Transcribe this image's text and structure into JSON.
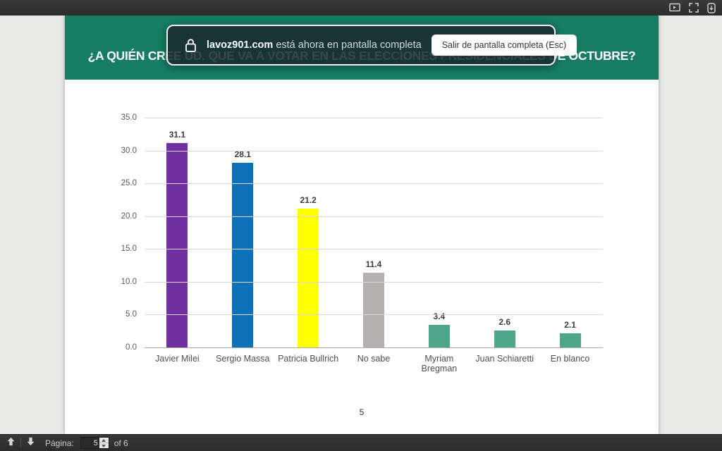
{
  "titlebar": {
    "icons": [
      {
        "name": "presentation-mode-icon"
      },
      {
        "name": "fullscreen-exit-icon"
      },
      {
        "name": "scroll-mode-icon"
      }
    ]
  },
  "fullscreen_notice": {
    "lock_icon": "lock-icon",
    "domain": "lavoz901.com",
    "message": " está ahora en pantalla completa",
    "exit_button_label": "Salir de pantalla completa (Esc)",
    "background_color": "rgba(26,40,44,0.86)"
  },
  "slide": {
    "title": "¿A QUIÉN CREE UD. QUE VA A VOTAR EN LAS ELECCIONES PRESIDENCIALES DE OCTUBRE?",
    "header_color": "#167d63",
    "page_number": "5"
  },
  "chart_data": {
    "type": "bar",
    "title": "¿A QUIÉN CREE UD. QUE VA A VOTAR EN LAS ELECCIONES PRESIDENCIALES DE OCTUBRE?",
    "categories": [
      "Javier Milei",
      "Sergio Massa",
      "Patricia Bullrich",
      "No sabe",
      "Myriam Bregman",
      "Juan Schiaretti",
      "En blanco"
    ],
    "values": [
      31.1,
      28.1,
      21.2,
      11.4,
      3.4,
      2.6,
      2.1
    ],
    "bar_colors": [
      "#7030a0",
      "#0f72b8",
      "#ffff00",
      "#b3b0af",
      "#4da58a",
      "#4da58a",
      "#4da58a"
    ],
    "xlabel": "",
    "ylabel": "",
    "ylim": [
      0,
      35
    ],
    "ytick_labels": [
      "35.0",
      "30.0",
      "25.0",
      "20.0",
      "15.0",
      "10.0",
      "5.0",
      "0.0"
    ],
    "grid": true,
    "gridline_color": "#d9d9d9",
    "value_labels_shown": true,
    "legend_position": "none"
  },
  "statusbar": {
    "prev_icon": "up-arrow-icon",
    "next_icon": "down-arrow-icon",
    "page_label": "Página:",
    "page_value": "5",
    "total_label": "of 6"
  }
}
